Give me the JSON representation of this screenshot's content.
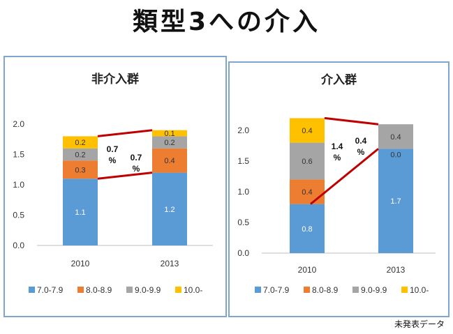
{
  "page": {
    "title": "類型3への介入",
    "footnote": "未発表データ"
  },
  "colors": {
    "s1": "#5b9bd5",
    "s2": "#ed7d31",
    "s3": "#a5a5a5",
    "s4": "#ffc000",
    "change_line": "#c00000"
  },
  "chart_data": [
    {
      "type": "bar",
      "stacked": true,
      "title": "非介入群",
      "categories": [
        "2010",
        "2013"
      ],
      "ylim": [
        0,
        2.0
      ],
      "yticks": [
        "0.0",
        "0.5",
        "1.0",
        "1.5",
        "2.0"
      ],
      "grid": false,
      "legend_position": "bottom",
      "series": [
        {
          "name": "7.0-7.9",
          "values": [
            1.1,
            1.2
          ],
          "labels": [
            "1.1",
            "1.2"
          ]
        },
        {
          "name": "8.0-8.9",
          "values": [
            0.3,
            0.4
          ],
          "labels": [
            "0.3",
            "0.4"
          ]
        },
        {
          "name": "9.0-9.9",
          "values": [
            0.2,
            0.2
          ],
          "labels": [
            "0.2",
            "0.2"
          ]
        },
        {
          "name": "10.0-",
          "values": [
            0.2,
            0.1
          ],
          "labels": [
            "0.2",
            "0.1"
          ]
        }
      ],
      "annotations": [
        "0.7 %",
        "0.7 %"
      ]
    },
    {
      "type": "bar",
      "stacked": true,
      "title": "介入群",
      "categories": [
        "2010",
        "2013"
      ],
      "ylim": [
        0,
        2.0
      ],
      "yticks": [
        "0.0",
        "0.5",
        "1.0",
        "1.5",
        "2.0"
      ],
      "grid": false,
      "legend_position": "bottom",
      "series": [
        {
          "name": "7.0-7.9",
          "values": [
            0.8,
            1.7
          ],
          "labels": [
            "0.8",
            "1.7"
          ]
        },
        {
          "name": "8.0-8.9",
          "values": [
            0.4,
            0.0
          ],
          "labels": [
            "0.4",
            "0.0"
          ]
        },
        {
          "name": "9.0-9.9",
          "values": [
            0.6,
            0.4
          ],
          "labels": [
            "0.6",
            "0.4"
          ]
        },
        {
          "name": "10.0-",
          "values": [
            0.4,
            0.0
          ],
          "labels": [
            "0.4",
            ""
          ]
        }
      ],
      "annotations": [
        "1.4 %",
        "0.4 %"
      ]
    }
  ]
}
